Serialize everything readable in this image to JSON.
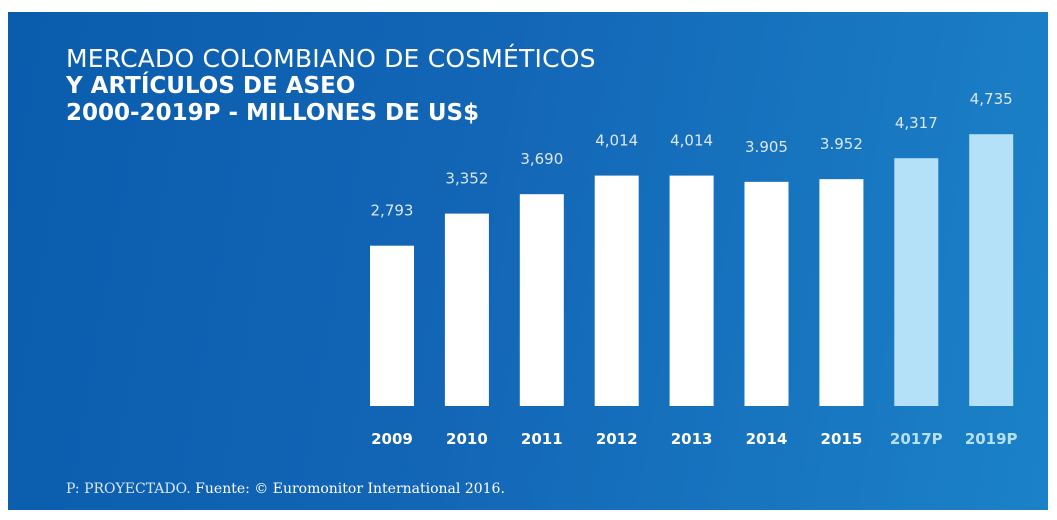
{
  "title": {
    "line1": "MERCADO COLOMBIANO DE COSMÉTICOS",
    "line2": "Y ARTÍCULOS DE ASEO",
    "line3": "2000-2019P - MILLONES DE US$"
  },
  "footnote": {
    "prefix": "P: PROYECTADO.",
    "source": "Fuente: © Euromonitor International 2016."
  },
  "colors": {
    "background": "#1366b6",
    "bar_actual": "#ffffff",
    "bar_projected": "#b5e1f8",
    "label_actual": "#ffffff",
    "label_projected": "#b5e1f8",
    "value_label": "#dbe7f3"
  },
  "chart_data": {
    "type": "bar",
    "categories": [
      "2009",
      "2010",
      "2011",
      "2012",
      "2013",
      "2014",
      "2015",
      "2017P",
      "2019P"
    ],
    "value_labels": [
      "2,793",
      "3,352",
      "3,690",
      "4,014",
      "4,014",
      "3.905",
      "3.952",
      "4,317",
      "4,735"
    ],
    "values": [
      2793,
      3352,
      3690,
      4014,
      4014,
      3905,
      3952,
      4317,
      4735
    ],
    "projected": [
      false,
      false,
      false,
      false,
      false,
      false,
      false,
      true,
      true
    ]
  }
}
